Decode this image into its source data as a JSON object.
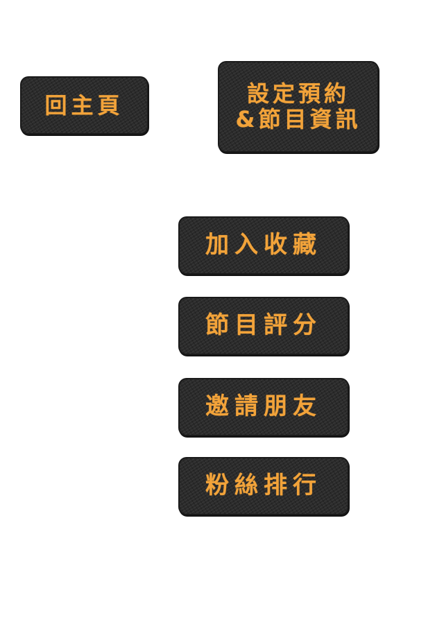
{
  "buttons": {
    "home": {
      "label": "回主頁"
    },
    "reminder": {
      "line1": "設定預約",
      "line2": "&節目資訊"
    },
    "favorite": {
      "label": "加入收藏"
    },
    "rating": {
      "label": "節目評分"
    },
    "invite": {
      "label": "邀請朋友"
    },
    "fans": {
      "label": "粉絲排行"
    }
  },
  "colors": {
    "button_background": "#2b2b2b",
    "label_text": "#f2a33a",
    "page_background": "#ffffff"
  }
}
